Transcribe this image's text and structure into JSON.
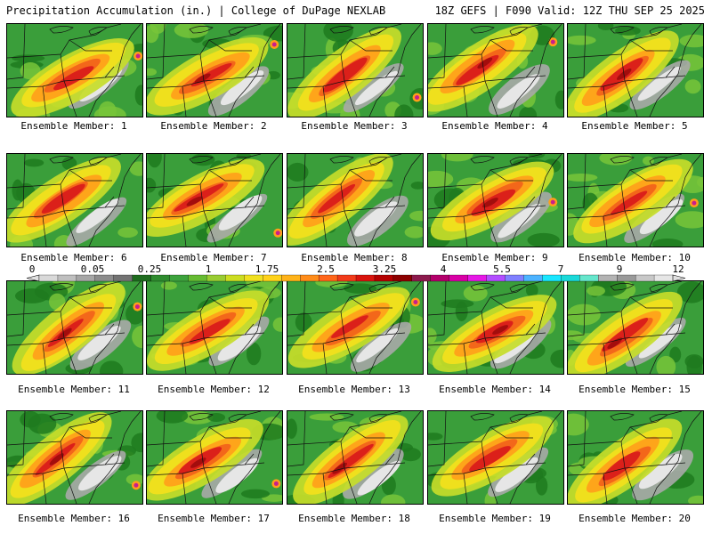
{
  "header": {
    "title": "Precipitation Accumulation (in.) | College of DuPage NEXLAB",
    "run_info": "18Z GEFS | F090 Valid: 12Z THU SEP 25 2025"
  },
  "member_label_prefix": "Ensemble Member:",
  "members": [
    {
      "id": 1,
      "label": "1"
    },
    {
      "id": 2,
      "label": "2"
    },
    {
      "id": 3,
      "label": "3"
    },
    {
      "id": 4,
      "label": "4"
    },
    {
      "id": 5,
      "label": "5"
    },
    {
      "id": 6,
      "label": "6"
    },
    {
      "id": 7,
      "label": "7"
    },
    {
      "id": 8,
      "label": "8"
    },
    {
      "id": 9,
      "label": "9"
    },
    {
      "id": 10,
      "label": "10"
    },
    {
      "id": 11,
      "label": "11"
    },
    {
      "id": 12,
      "label": "12"
    },
    {
      "id": 13,
      "label": "13"
    },
    {
      "id": 14,
      "label": "14"
    },
    {
      "id": 15,
      "label": "15"
    },
    {
      "id": 16,
      "label": "16"
    },
    {
      "id": 17,
      "label": "17"
    },
    {
      "id": 18,
      "label": "18"
    },
    {
      "id": 19,
      "label": "19"
    },
    {
      "id": 20,
      "label": "20"
    }
  ],
  "colorbar": {
    "labels": [
      "0",
      "0.05",
      "0.25",
      "1",
      "1.75",
      "2.5",
      "3.25",
      "4",
      "5.5",
      "7",
      "9",
      "12"
    ],
    "colors": [
      "#d9d9d9",
      "#bfbfbf",
      "#a6a6a6",
      "#8c8c8c",
      "#737373",
      "#1e6b1e",
      "#2e8b2e",
      "#3da33d",
      "#66bb33",
      "#99cc33",
      "#ccdd22",
      "#f0e020",
      "#ffd21a",
      "#ffb31a",
      "#ff8c1a",
      "#ff661a",
      "#f23b1a",
      "#d9140d",
      "#b30000",
      "#8c0000",
      "#8c1a4d",
      "#b3006b",
      "#d900a6",
      "#e619e6",
      "#b34dff",
      "#8080ff",
      "#4db3ff",
      "#19e6ff",
      "#1ad9d9",
      "#66e6cc",
      "#b3b3b3",
      "#9a9a9a",
      "#c8c8c8",
      "#e6e6e6"
    ]
  },
  "palette": {
    "dark_green": "#1f7a1f",
    "mid_green": "#3a9e3a",
    "light_green": "#78c43a",
    "yellow_green": "#c7dd2a",
    "yellow": "#f3e11c",
    "orange": "#ff9f1a",
    "red_orange": "#f2621a",
    "red": "#d91a1a",
    "dark_red": "#a30d0d",
    "magenta": "#c81e8c",
    "light_gray": "#e6e6e6",
    "gray": "#a8a8a8"
  }
}
